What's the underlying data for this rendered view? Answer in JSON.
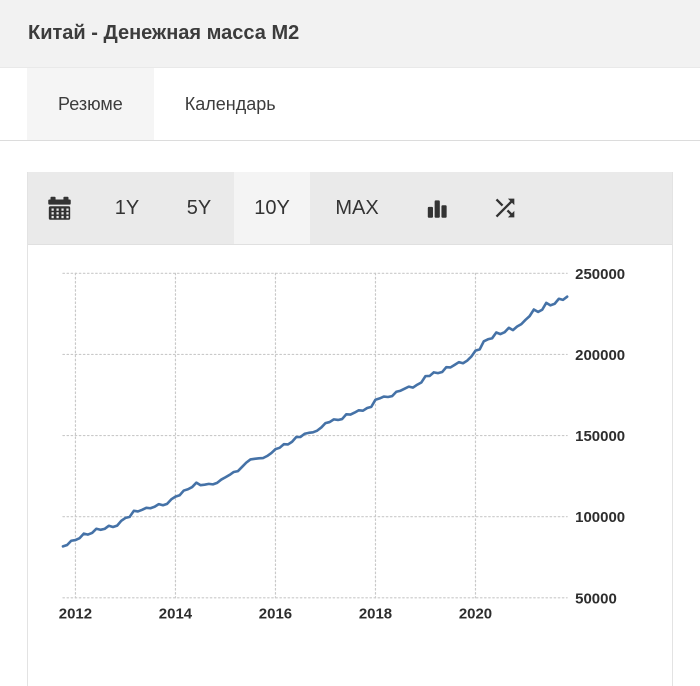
{
  "header": {
    "title": "Китай - Денежная масса М2"
  },
  "tabs": [
    {
      "label": "Резюме",
      "active": true
    },
    {
      "label": "Календарь",
      "active": false
    }
  ],
  "toolbar": {
    "calendar_icon": "calendar-icon",
    "ranges": [
      {
        "label": "1Y",
        "selected": false
      },
      {
        "label": "5Y",
        "selected": false
      },
      {
        "label": "10Y",
        "selected": true
      },
      {
        "label": "MAX",
        "selected": false
      }
    ],
    "chart_type_icon": "bar-chart-icon",
    "compare_icon": "shuffle-icon"
  },
  "colors": {
    "header_bg": "#f2f2f2",
    "tab_active_bg": "#f5f5f5",
    "toolbar_bg": "#eaeaea",
    "selected_bg": "#f4f4f4",
    "card_border": "#e3e3e3",
    "divider": "#dcdcdc",
    "line": "#4572a7",
    "grid": "#c9c9c9",
    "axis_text": "#2d2d2d",
    "text": "#3c3c3c",
    "icon": "#333333"
  },
  "chart_data": {
    "type": "line",
    "title": "Китай - Денежная масса М2",
    "series_name": "Денежная масса М2",
    "range_selected": "10Y",
    "x_start": {
      "year": 2011,
      "month": 10
    },
    "x_frequency": "monthly",
    "x_tick_labels": [
      "2012",
      "2014",
      "2016",
      "2018",
      "2020"
    ],
    "y_tick_labels": [
      "250000",
      "200000",
      "150000",
      "100000",
      "50000"
    ],
    "y_tick_values": [
      250000,
      200000,
      150000,
      100000,
      50000
    ],
    "ylim": [
      50000,
      250000
    ],
    "grid": "dotted",
    "legend": "none",
    "monthly_values": [
      81680,
      82550,
      85160,
      85580,
      86720,
      89560,
      88960,
      90020,
      92500,
      91910,
      92490,
      94370,
      93640,
      94480,
      97420,
      99210,
      99860,
      103610,
      103260,
      104210,
      105450,
      105230,
      106120,
      107740,
      107020,
      107930,
      110650,
      112350,
      113180,
      116070,
      116880,
      118230,
      120960,
      119420,
      119750,
      120210,
      119920,
      120860,
      122840,
      124270,
      125740,
      127530,
      128080,
      130740,
      133340,
      135320,
      135690,
      135980,
      136100,
      137400,
      139230,
      141630,
      142460,
      144620,
      144520,
      146170,
      149050,
      149160,
      151100,
      151640,
      151950,
      153040,
      155010,
      157600,
      158290,
      159960,
      159630,
      160140,
      163130,
      162900,
      164140,
      165570,
      165340,
      167000,
      167680,
      172080,
      172910,
      173990,
      173770,
      174310,
      177020,
      177620,
      178870,
      180170,
      179560,
      181320,
      182670,
      186590,
      186740,
      188940,
      188470,
      189120,
      192140,
      191940,
      193550,
      195230,
      194560,
      196140,
      198650,
      202310,
      203080,
      208090,
      209350,
      210020,
      213490,
      212550,
      213680,
      216410,
      214970,
      217200,
      218680,
      221300,
      223600,
      227650,
      226210,
      227550,
      231780,
      230220,
      231230,
      234280,
      233620,
      235600
    ]
  }
}
